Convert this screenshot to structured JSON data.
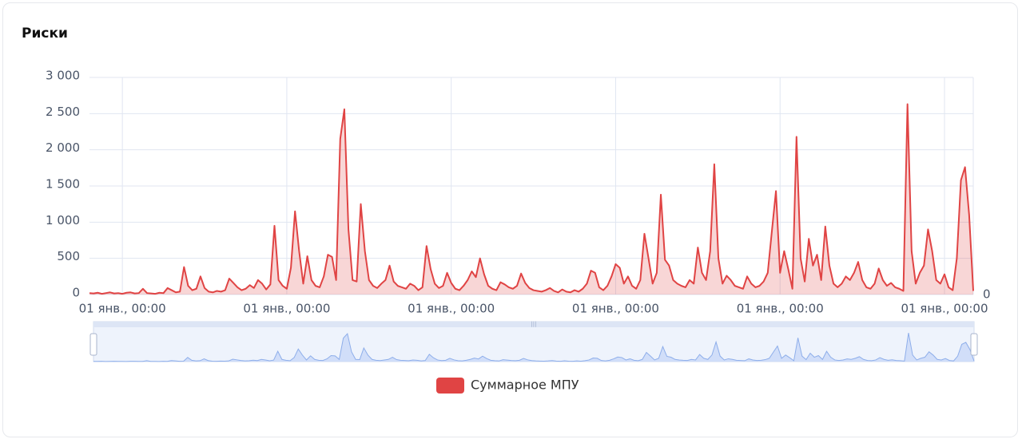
{
  "chart_data": {
    "type": "line",
    "title": "Риски",
    "categories": [
      null,
      null,
      null,
      null,
      null,
      null,
      null,
      null,
      "01 янв., 00:00",
      null,
      null,
      null,
      null,
      null,
      null,
      null,
      null,
      null,
      null,
      null,
      null,
      null,
      null,
      null,
      null,
      null,
      null,
      null,
      null,
      null,
      null,
      null,
      null,
      null,
      null,
      null,
      null,
      null,
      null,
      null,
      null,
      null,
      null,
      null,
      null,
      null,
      null,
      null,
      "01 янв., 00:00",
      null,
      null,
      null,
      null,
      null,
      null,
      null,
      null,
      null,
      null,
      null,
      null,
      null,
      null,
      null,
      null,
      null,
      null,
      null,
      null,
      null,
      null,
      null,
      null,
      null,
      null,
      null,
      null,
      null,
      null,
      null,
      null,
      null,
      null,
      null,
      null,
      null,
      null,
      null,
      "01 янв., 00:00",
      null,
      null,
      null,
      null,
      null,
      null,
      null,
      null,
      null,
      null,
      null,
      null,
      null,
      null,
      null,
      null,
      null,
      null,
      null,
      null,
      null,
      null,
      null,
      null,
      null,
      null,
      null,
      null,
      null,
      null,
      null,
      null,
      null,
      null,
      null,
      null,
      null,
      null,
      null,
      "01 янв., 00:00",
      null,
      null,
      null,
      null,
      null,
      null,
      null,
      null,
      null,
      null,
      null,
      null,
      null,
      null,
      null,
      null,
      null,
      null,
      null,
      null,
      null,
      null,
      null,
      null,
      null,
      null,
      null,
      null,
      null,
      null,
      null,
      null,
      null,
      null,
      null,
      null,
      null,
      null,
      null,
      "01 янв., 00:00",
      null,
      null,
      null,
      null,
      null,
      null,
      null,
      null,
      null,
      null,
      null,
      null,
      null,
      null,
      null,
      null,
      null,
      null,
      null,
      null,
      null,
      null,
      null,
      null,
      null,
      null,
      null,
      null,
      null,
      null,
      null,
      null,
      null,
      null,
      null,
      null,
      null,
      null,
      null,
      "01 янв., 00:00",
      null,
      null,
      null,
      null,
      null,
      null,
      null
    ],
    "series": [
      {
        "name": "Суммарное МПУ",
        "color": "#e04444",
        "values": [
          20,
          15,
          25,
          10,
          20,
          30,
          15,
          20,
          10,
          25,
          30,
          15,
          20,
          80,
          20,
          15,
          10,
          25,
          20,
          90,
          60,
          30,
          40,
          380,
          120,
          60,
          80,
          250,
          90,
          40,
          30,
          50,
          40,
          60,
          220,
          160,
          100,
          60,
          80,
          130,
          90,
          200,
          150,
          70,
          140,
          950,
          200,
          120,
          80,
          370,
          1150,
          600,
          150,
          530,
          200,
          120,
          100,
          250,
          550,
          520,
          200,
          2150,
          2560,
          900,
          200,
          180,
          1250,
          600,
          200,
          120,
          90,
          150,
          200,
          400,
          180,
          120,
          100,
          80,
          150,
          120,
          60,
          100,
          670,
          350,
          150,
          90,
          120,
          300,
          160,
          80,
          60,
          120,
          200,
          320,
          240,
          500,
          280,
          120,
          80,
          60,
          170,
          140,
          100,
          80,
          120,
          290,
          160,
          90,
          60,
          50,
          40,
          60,
          90,
          50,
          30,
          70,
          40,
          30,
          60,
          40,
          80,
          150,
          330,
          300,
          100,
          60,
          120,
          250,
          420,
          370,
          150,
          250,
          120,
          80,
          200,
          840,
          500,
          150,
          300,
          1380,
          480,
          400,
          200,
          150,
          120,
          100,
          200,
          150,
          650,
          300,
          200,
          600,
          1800,
          500,
          150,
          260,
          200,
          120,
          100,
          80,
          250,
          150,
          100,
          120,
          180,
          300,
          870,
          1430,
          300,
          600,
          350,
          80,
          2180,
          500,
          180,
          770,
          400,
          550,
          200,
          940,
          400,
          150,
          100,
          150,
          250,
          200,
          300,
          450,
          200,
          100,
          80,
          150,
          360,
          200,
          120,
          160,
          100,
          80,
          50,
          2630,
          600,
          150,
          300,
          400,
          900,
          600,
          200,
          150,
          280,
          100,
          60,
          500,
          1580,
          1760,
          1100,
          50
        ]
      }
    ],
    "ylim": [
      0,
      3000
    ],
    "yticks": [
      0,
      {
        "value": 500,
        "label": "500"
      },
      {
        "value": 1000,
        "label": "1 000"
      },
      {
        "value": 1500,
        "label": "1 500"
      },
      {
        "value": 2000,
        "label": "2 000"
      },
      {
        "value": 2500,
        "label": "2 500"
      },
      {
        "value": 3000,
        "label": "3 000"
      }
    ],
    "grid": true,
    "legend": "bottom",
    "slider_label": "0"
  }
}
